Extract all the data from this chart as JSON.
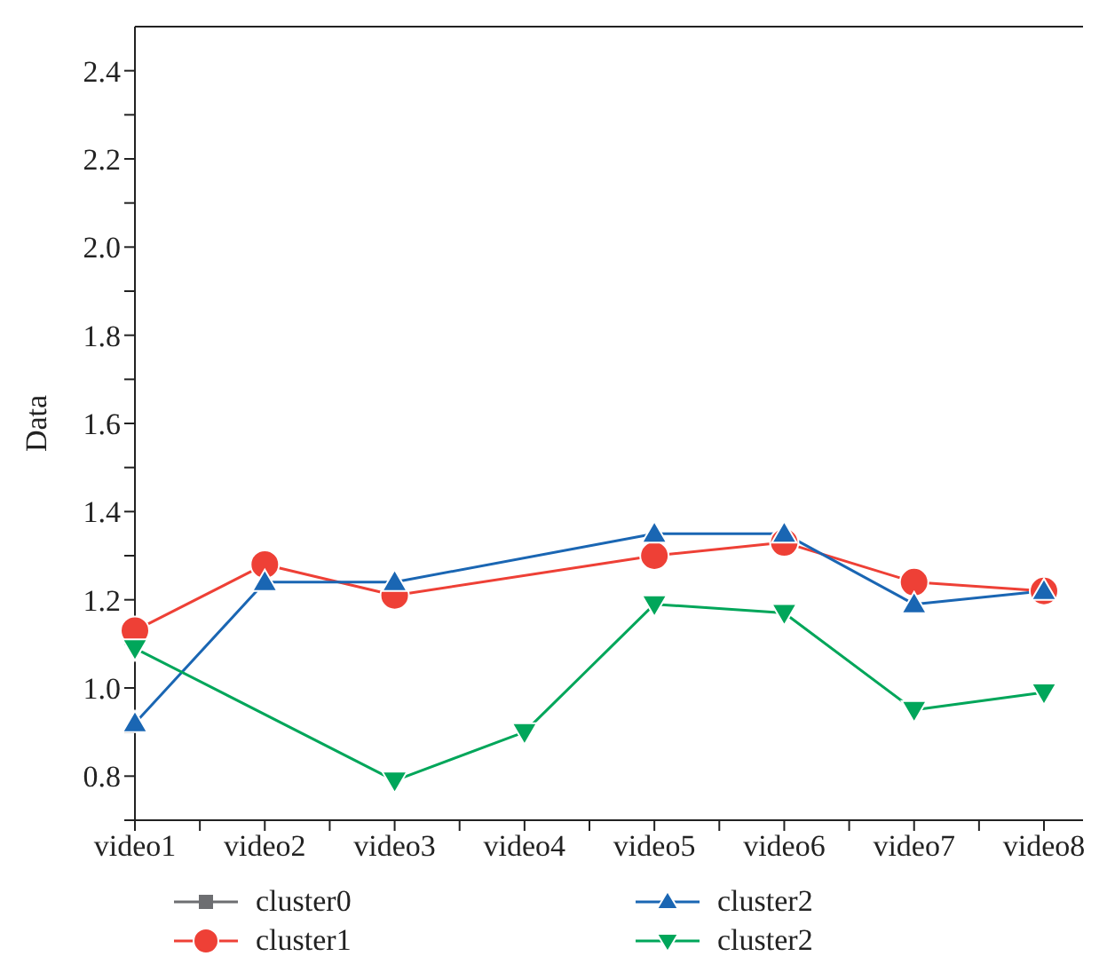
{
  "chart_data": {
    "type": "line",
    "ylabel": "Data",
    "categories": [
      "video1",
      "video2",
      "video3",
      "video4",
      "video5",
      "video6",
      "video7",
      "video8"
    ],
    "ylim": [
      0.7,
      2.5
    ],
    "yticks": [
      {
        "value": 0.7,
        "label": null
      },
      {
        "value": 0.8,
        "label": "0.8"
      },
      {
        "value": 0.9,
        "label": null
      },
      {
        "value": 1.0,
        "label": "1.0"
      },
      {
        "value": 1.1,
        "label": null
      },
      {
        "value": 1.2,
        "label": "1.2"
      },
      {
        "value": 1.3,
        "label": null
      },
      {
        "value": 1.4,
        "label": "1.4"
      },
      {
        "value": 1.5,
        "label": null
      },
      {
        "value": 1.6,
        "label": "1.6"
      },
      {
        "value": 1.7,
        "label": null
      },
      {
        "value": 1.8,
        "label": "1.8"
      },
      {
        "value": 1.9,
        "label": null
      },
      {
        "value": 2.0,
        "label": "2.0"
      },
      {
        "value": 2.1,
        "label": null
      },
      {
        "value": 2.2,
        "label": "2.2"
      },
      {
        "value": 2.3,
        "label": null
      },
      {
        "value": 2.4,
        "label": "2.4"
      }
    ],
    "grid": false,
    "legend": "bottom",
    "line_style": "solid",
    "series": [
      {
        "name": "cluster0",
        "color": "#6d6e71",
        "marker": "square",
        "values": [
          null,
          null,
          null,
          null,
          null,
          null,
          null,
          null
        ]
      },
      {
        "name": "cluster1",
        "color": "#ee4036",
        "marker": "circle",
        "values": [
          1.13,
          1.28,
          1.21,
          null,
          1.3,
          1.33,
          1.24,
          1.22
        ]
      },
      {
        "name": "cluster2",
        "color": "#1a66b3",
        "marker": "triangle",
        "values": [
          0.92,
          1.24,
          1.24,
          null,
          1.35,
          1.35,
          1.19,
          1.22
        ]
      },
      {
        "name": "cluster2",
        "color": "#00a65a",
        "marker": "triangle-down",
        "values": [
          1.09,
          null,
          0.79,
          0.9,
          1.19,
          1.17,
          0.95,
          0.99
        ]
      }
    ]
  }
}
